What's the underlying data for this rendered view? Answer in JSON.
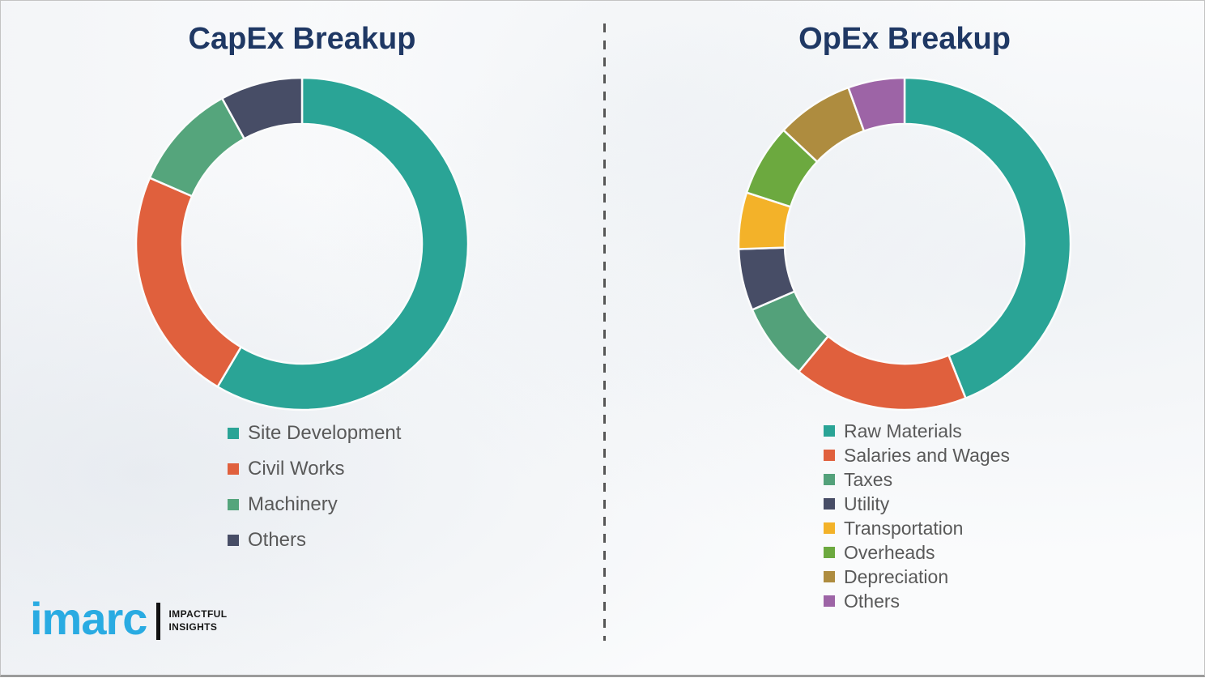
{
  "colors": {
    "title_text": "#1F3864",
    "legend_text": "#595959",
    "divider": "#565656",
    "slice_gap_stroke": "#FBFCFC"
  },
  "chart_data": [
    {
      "type": "donut",
      "title": "CapEx Breakup",
      "legend_position": "bottom-left",
      "categories": [
        "Site Development",
        "Civil Works",
        "Machinery",
        "Others"
      ],
      "values": [
        58.5,
        23,
        10.5,
        8
      ],
      "colors": [
        "#2AA496",
        "#E0603D",
        "#55A57C",
        "#474D66"
      ]
    },
    {
      "type": "donut",
      "title": "OpEx Breakup",
      "legend_position": "bottom-left",
      "categories": [
        "Raw Materials",
        "Salaries and Wages",
        "Taxes",
        "Utility",
        "Transportation",
        "Overheads",
        "Depreciation",
        "Others"
      ],
      "values": [
        44,
        17,
        7.5,
        6,
        5.5,
        7,
        7.5,
        5.5
      ],
      "colors": [
        "#2AA496",
        "#E0603D",
        "#53A17A",
        "#474D66",
        "#F3B229",
        "#6CA93F",
        "#AE8C3F",
        "#9D64A6"
      ]
    }
  ],
  "logo": {
    "brand": "imarc",
    "brand_color": "#29ABE2",
    "tagline_line1": "IMPACTFUL",
    "tagline_line2": "INSIGHTS"
  }
}
